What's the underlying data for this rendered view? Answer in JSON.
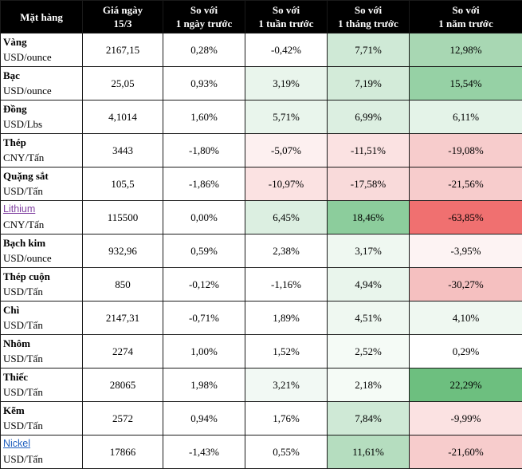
{
  "header": {
    "col_item": "Mặt hàng",
    "col_price_l1": "Giá ngày",
    "col_price_l2": "15/3",
    "col_d_l1": "So với",
    "col_d_l2": "1 ngày trước",
    "col_w_l1": "So với",
    "col_w_l2": "1 tuần trước",
    "col_m_l1": "So với",
    "col_m_l2": "1 tháng trước",
    "col_y_l1": "So với",
    "col_y_l2": "1 năm trước"
  },
  "colors": {
    "header_bg": "#000000",
    "header_text": "#ffffff",
    "green_scale": [
      "#e9f5ec",
      "#dcefe1",
      "#cfe9d6",
      "#c6e5cd",
      "#b5ddbf",
      "#a8d7b3",
      "#8ccd9c",
      "#6dbf7f"
    ],
    "red_scale": [
      "#fdf3f3",
      "#fbe2e2",
      "#f8d3d3",
      "#f5c4c4",
      "#f2b4b4",
      "#f07070"
    ]
  },
  "rows": [
    {
      "name": "Vàng",
      "unit": "USD/ounce",
      "price": "2167,15",
      "d": "0,28%",
      "w": "-0,42%",
      "m": "7,71%",
      "y": "12,98%",
      "bg_d": "#ffffff",
      "bg_w": "#ffffff",
      "bg_m": "#cfe9d6",
      "bg_y": "#a8d7b3"
    },
    {
      "name": "Bạc",
      "unit": "USD/ounce",
      "price": "25,05",
      "d": "0,93%",
      "w": "3,19%",
      "m": "7,19%",
      "y": "15,54%",
      "bg_d": "#ffffff",
      "bg_w": "#e9f5ec",
      "bg_m": "#d3ebd9",
      "bg_y": "#96d1a5"
    },
    {
      "name": "Đồng",
      "unit": "USD/Lbs",
      "price": "4,1014",
      "d": "1,60%",
      "w": "5,71%",
      "m": "6,99%",
      "y": "6,11%",
      "bg_d": "#ffffff",
      "bg_w": "#e9f5ec",
      "bg_m": "#dcefe1",
      "bg_y": "#e4f3e8"
    },
    {
      "name": "Thép",
      "unit": "CNY/Tấn",
      "price": "3443",
      "d": "-1,80%",
      "w": "-5,07%",
      "m": "-11,51%",
      "y": "-19,08%",
      "bg_d": "#ffffff",
      "bg_w": "#fdf0f0",
      "bg_m": "#fbe2e2",
      "bg_y": "#f7cccc"
    },
    {
      "name": "Quặng sắt",
      "unit": "USD/Tấn",
      "price": "105,5",
      "d": "-1,86%",
      "w": "-10,97%",
      "m": "-17,58%",
      "y": "-21,56%",
      "bg_d": "#ffffff",
      "bg_w": "#fbe2e2",
      "bg_m": "#f9dada",
      "bg_y": "#f7cccc"
    },
    {
      "name": "Lithium",
      "unit": "CNY/Tấn",
      "price": "115500",
      "d": "0,00%",
      "w": "6,45%",
      "m": "18,46%",
      "y": "-63,85%",
      "bg_d": "#ffffff",
      "bg_w": "#dcefe1",
      "bg_m": "#8ccd9c",
      "bg_y": "#f07070",
      "link": "purple"
    },
    {
      "name": "Bạch kim",
      "unit": "USD/ounce",
      "price": "932,96",
      "d": "0,59%",
      "w": "2,38%",
      "m": "3,17%",
      "y": "-3,95%",
      "bg_d": "#ffffff",
      "bg_w": "#ffffff",
      "bg_m": "#eff8f1",
      "bg_y": "#fdf3f3"
    },
    {
      "name": "Thép cuộn",
      "unit": "USD/Tấn",
      "price": "850",
      "d": "-0,12%",
      "w": "-1,16%",
      "m": "4,94%",
      "y": "-30,27%",
      "bg_d": "#ffffff",
      "bg_w": "#ffffff",
      "bg_m": "#e9f5ec",
      "bg_y": "#f5c0c0"
    },
    {
      "name": "Chì",
      "unit": "USD/Tấn",
      "price": "2147,31",
      "d": "-0,71%",
      "w": "1,89%",
      "m": "4,51%",
      "y": "4,10%",
      "bg_d": "#ffffff",
      "bg_w": "#ffffff",
      "bg_m": "#eff8f1",
      "bg_y": "#eff8f1"
    },
    {
      "name": "Nhôm",
      "unit": "USD/Tấn",
      "price": "2274",
      "d": "1,00%",
      "w": "1,52%",
      "m": "2,52%",
      "y": "0,29%",
      "bg_d": "#ffffff",
      "bg_w": "#ffffff",
      "bg_m": "#f5fbf6",
      "bg_y": "#ffffff"
    },
    {
      "name": "Thiếc",
      "unit": "USD/Tấn",
      "price": "28065",
      "d": "1,98%",
      "w": "3,21%",
      "m": "2,18%",
      "y": "22,29%",
      "bg_d": "#ffffff",
      "bg_w": "#f2f9f4",
      "bg_m": "#f5fbf6",
      "bg_y": "#6dbf7f"
    },
    {
      "name": "Kẽm",
      "unit": "USD/Tấn",
      "price": "2572",
      "d": "0,94%",
      "w": "1,76%",
      "m": "7,84%",
      "y": "-9,99%",
      "bg_d": "#ffffff",
      "bg_w": "#ffffff",
      "bg_m": "#cfe9d6",
      "bg_y": "#fbe2e2"
    },
    {
      "name": "Nickel",
      "unit": "USD/Tấn",
      "price": "17866",
      "d": "-1,43%",
      "w": "0,55%",
      "m": "11,61%",
      "y": "-21,60%",
      "bg_d": "#ffffff",
      "bg_w": "#ffffff",
      "bg_m": "#b5ddbf",
      "bg_y": "#f7cccc",
      "link": "blue"
    }
  ]
}
